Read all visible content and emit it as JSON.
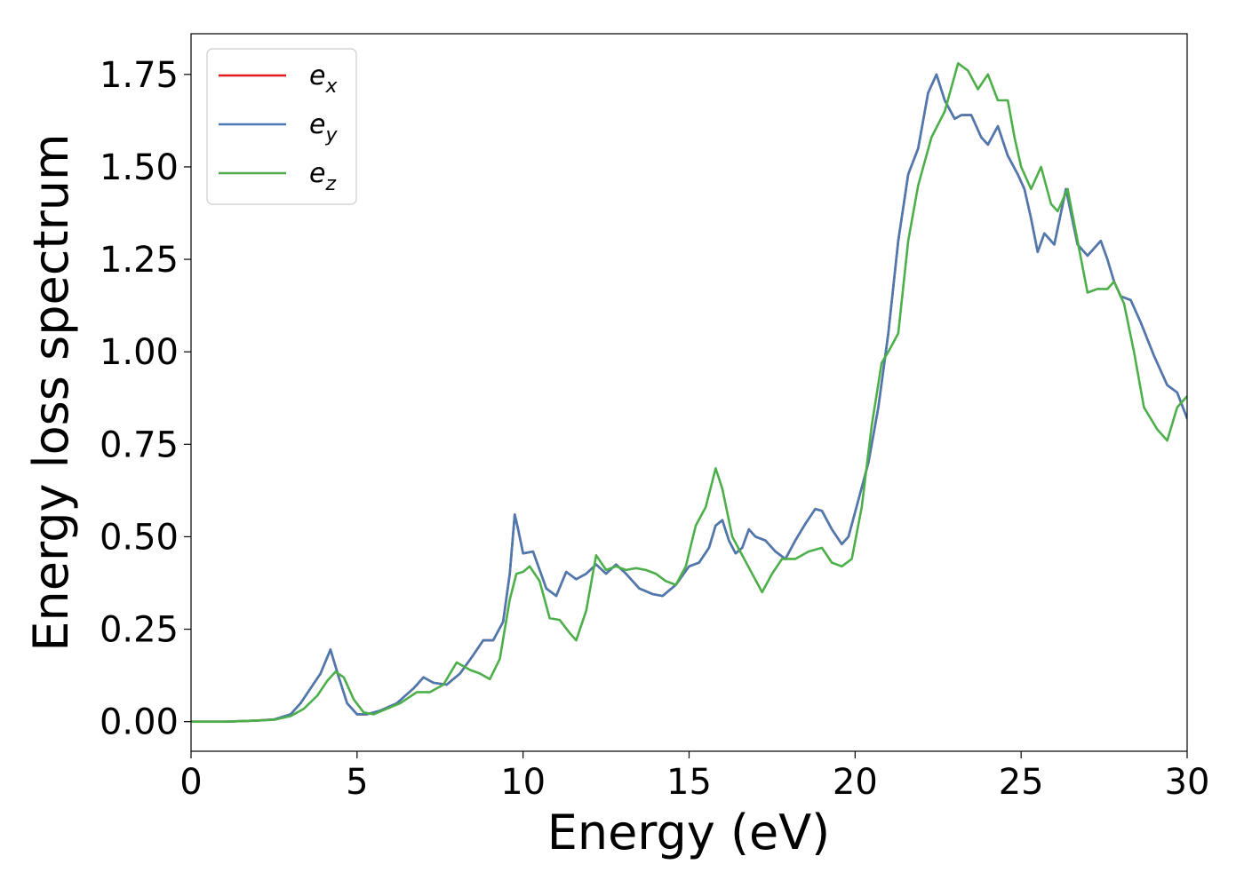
{
  "chart_data": {
    "type": "line",
    "xlabel": "Energy (eV)",
    "ylabel": "Energy loss spectrum",
    "xlim": [
      0,
      30
    ],
    "ylim": [
      -0.08,
      1.86
    ],
    "xticks": [
      0,
      5,
      10,
      15,
      20,
      25,
      30
    ],
    "yticks": [
      0.0,
      0.25,
      0.5,
      0.75,
      1.0,
      1.25,
      1.5,
      1.75
    ],
    "grid": false,
    "legend": {
      "position": "top-left"
    },
    "series": [
      {
        "name": "e_x",
        "legend_base": "e",
        "legend_sub": "x",
        "color": "#e41a1c",
        "x": [
          0,
          1,
          2,
          2.5,
          3,
          3.3,
          3.6,
          3.9,
          4.2,
          4.45,
          4.7,
          5.0,
          5.3,
          5.7,
          6.2,
          6.7,
          7.0,
          7.3,
          7.7,
          8.1,
          8.5,
          8.8,
          9.1,
          9.4,
          9.6,
          9.75,
          9.85,
          10.0,
          10.3,
          10.7,
          11.0,
          11.3,
          11.6,
          11.9,
          12.2,
          12.5,
          12.8,
          13.1,
          13.5,
          13.9,
          14.2,
          14.6,
          15.0,
          15.3,
          15.6,
          15.8,
          16.0,
          16.2,
          16.4,
          16.6,
          16.8,
          17.0,
          17.3,
          17.6,
          17.9,
          18.2,
          18.5,
          18.8,
          19.0,
          19.3,
          19.6,
          19.8,
          20.1,
          20.4,
          20.7,
          21.0,
          21.3,
          21.6,
          21.9,
          22.2,
          22.45,
          22.7,
          23.0,
          23.2,
          23.5,
          23.8,
          24.0,
          24.3,
          24.6,
          24.9,
          25.1,
          25.3,
          25.5,
          25.7,
          26.0,
          26.35,
          26.7,
          27.0,
          27.4,
          27.6,
          27.8,
          28.0,
          28.3,
          28.6,
          29.0,
          29.4,
          29.7,
          30.0
        ],
        "y": [
          0.0,
          0.0,
          0.003,
          0.006,
          0.02,
          0.05,
          0.09,
          0.13,
          0.195,
          0.12,
          0.05,
          0.02,
          0.02,
          0.03,
          0.05,
          0.09,
          0.12,
          0.105,
          0.1,
          0.13,
          0.18,
          0.22,
          0.22,
          0.27,
          0.4,
          0.56,
          0.52,
          0.455,
          0.46,
          0.36,
          0.34,
          0.405,
          0.385,
          0.4,
          0.425,
          0.4,
          0.425,
          0.4,
          0.36,
          0.345,
          0.34,
          0.37,
          0.42,
          0.43,
          0.47,
          0.53,
          0.545,
          0.49,
          0.455,
          0.47,
          0.52,
          0.5,
          0.49,
          0.46,
          0.44,
          0.49,
          0.535,
          0.575,
          0.57,
          0.52,
          0.48,
          0.5,
          0.6,
          0.7,
          0.85,
          1.05,
          1.3,
          1.48,
          1.55,
          1.7,
          1.75,
          1.68,
          1.63,
          1.64,
          1.64,
          1.58,
          1.56,
          1.61,
          1.53,
          1.48,
          1.44,
          1.36,
          1.27,
          1.32,
          1.29,
          1.44,
          1.29,
          1.26,
          1.3,
          1.25,
          1.19,
          1.15,
          1.14,
          1.08,
          0.99,
          0.91,
          0.89,
          0.82
        ]
      },
      {
        "name": "e_y",
        "legend_base": "e",
        "legend_sub": "y",
        "color": "#4a7ab0",
        "x": [
          0,
          1,
          2,
          2.5,
          3,
          3.3,
          3.6,
          3.9,
          4.2,
          4.45,
          4.7,
          5.0,
          5.3,
          5.7,
          6.2,
          6.7,
          7.0,
          7.3,
          7.7,
          8.1,
          8.5,
          8.8,
          9.1,
          9.4,
          9.6,
          9.75,
          9.85,
          10.0,
          10.3,
          10.7,
          11.0,
          11.3,
          11.6,
          11.9,
          12.2,
          12.5,
          12.8,
          13.1,
          13.5,
          13.9,
          14.2,
          14.6,
          15.0,
          15.3,
          15.6,
          15.8,
          16.0,
          16.2,
          16.4,
          16.6,
          16.8,
          17.0,
          17.3,
          17.6,
          17.9,
          18.2,
          18.5,
          18.8,
          19.0,
          19.3,
          19.6,
          19.8,
          20.1,
          20.4,
          20.7,
          21.0,
          21.3,
          21.6,
          21.9,
          22.2,
          22.45,
          22.7,
          23.0,
          23.2,
          23.5,
          23.8,
          24.0,
          24.3,
          24.6,
          24.9,
          25.1,
          25.3,
          25.5,
          25.7,
          26.0,
          26.35,
          26.7,
          27.0,
          27.4,
          27.6,
          27.8,
          28.0,
          28.3,
          28.6,
          29.0,
          29.4,
          29.7,
          30.0
        ],
        "y": [
          0.0,
          0.0,
          0.003,
          0.006,
          0.02,
          0.05,
          0.09,
          0.13,
          0.195,
          0.12,
          0.05,
          0.02,
          0.02,
          0.03,
          0.05,
          0.09,
          0.12,
          0.105,
          0.1,
          0.13,
          0.18,
          0.22,
          0.22,
          0.27,
          0.4,
          0.56,
          0.52,
          0.455,
          0.46,
          0.36,
          0.34,
          0.405,
          0.385,
          0.4,
          0.425,
          0.4,
          0.425,
          0.4,
          0.36,
          0.345,
          0.34,
          0.37,
          0.42,
          0.43,
          0.47,
          0.53,
          0.545,
          0.49,
          0.455,
          0.47,
          0.52,
          0.5,
          0.49,
          0.46,
          0.44,
          0.49,
          0.535,
          0.575,
          0.57,
          0.52,
          0.48,
          0.5,
          0.6,
          0.7,
          0.85,
          1.05,
          1.3,
          1.48,
          1.55,
          1.7,
          1.75,
          1.68,
          1.63,
          1.64,
          1.64,
          1.58,
          1.56,
          1.61,
          1.53,
          1.48,
          1.44,
          1.36,
          1.27,
          1.32,
          1.29,
          1.44,
          1.29,
          1.26,
          1.3,
          1.25,
          1.19,
          1.15,
          1.14,
          1.08,
          0.99,
          0.91,
          0.89,
          0.82
        ]
      },
      {
        "name": "e_z",
        "legend_base": "e",
        "legend_sub": "z",
        "color": "#4daf4a",
        "x": [
          0,
          1,
          2,
          2.5,
          3,
          3.4,
          3.8,
          4.1,
          4.35,
          4.6,
          4.9,
          5.2,
          5.5,
          5.9,
          6.3,
          6.8,
          7.2,
          7.6,
          8.0,
          8.4,
          8.7,
          9.0,
          9.3,
          9.6,
          9.8,
          10.0,
          10.2,
          10.5,
          10.8,
          11.1,
          11.4,
          11.6,
          11.9,
          12.2,
          12.5,
          12.8,
          13.1,
          13.4,
          13.7,
          14.0,
          14.3,
          14.6,
          14.9,
          15.2,
          15.5,
          15.8,
          16.0,
          16.3,
          16.6,
          16.9,
          17.2,
          17.5,
          17.8,
          18.2,
          18.6,
          19.0,
          19.3,
          19.6,
          19.9,
          20.2,
          20.5,
          20.8,
          21.0,
          21.3,
          21.6,
          21.9,
          22.3,
          22.7,
          23.1,
          23.4,
          23.7,
          24.0,
          24.3,
          24.6,
          24.8,
          25.0,
          25.3,
          25.6,
          25.9,
          26.1,
          26.4,
          26.7,
          27.0,
          27.3,
          27.6,
          27.8,
          28.1,
          28.4,
          28.7,
          29.1,
          29.4,
          29.7,
          30.0
        ],
        "y": [
          0.0,
          0.0,
          0.003,
          0.005,
          0.015,
          0.035,
          0.07,
          0.11,
          0.135,
          0.12,
          0.06,
          0.025,
          0.02,
          0.035,
          0.05,
          0.08,
          0.08,
          0.1,
          0.16,
          0.14,
          0.13,
          0.115,
          0.17,
          0.33,
          0.4,
          0.405,
          0.42,
          0.38,
          0.28,
          0.275,
          0.24,
          0.22,
          0.3,
          0.45,
          0.41,
          0.42,
          0.41,
          0.415,
          0.41,
          0.4,
          0.38,
          0.37,
          0.42,
          0.53,
          0.58,
          0.685,
          0.63,
          0.5,
          0.45,
          0.4,
          0.35,
          0.4,
          0.44,
          0.44,
          0.46,
          0.47,
          0.43,
          0.42,
          0.44,
          0.58,
          0.8,
          0.97,
          1.0,
          1.05,
          1.3,
          1.45,
          1.58,
          1.65,
          1.78,
          1.76,
          1.71,
          1.75,
          1.68,
          1.68,
          1.58,
          1.5,
          1.44,
          1.5,
          1.4,
          1.38,
          1.44,
          1.3,
          1.16,
          1.17,
          1.17,
          1.19,
          1.13,
          1.0,
          0.85,
          0.79,
          0.76,
          0.85,
          0.88
        ]
      }
    ]
  }
}
